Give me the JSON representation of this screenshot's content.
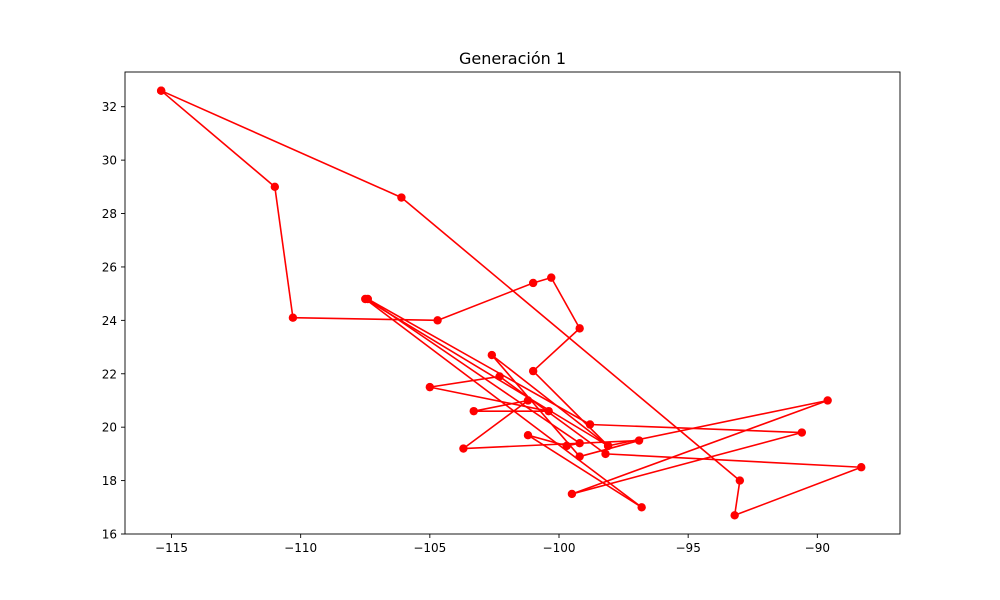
{
  "chart_data": {
    "type": "line",
    "title": "Generación 1",
    "xlabel": "",
    "ylabel": "",
    "xlim": [
      -116.8,
      -86.8
    ],
    "ylim": [
      16.0,
      33.3
    ],
    "x_ticks": [
      -115,
      -110,
      -105,
      -100,
      -95,
      -90
    ],
    "x_tick_labels": [
      "−115",
      "−110",
      "−105",
      "−100",
      "−95",
      "−90"
    ],
    "y_ticks": [
      16,
      18,
      20,
      22,
      24,
      26,
      28,
      30,
      32
    ],
    "y_tick_labels": [
      "16",
      "18",
      "20",
      "22",
      "24",
      "26",
      "28",
      "30",
      "32"
    ],
    "grid": false,
    "series": [
      {
        "color": "#ff0000",
        "marker": "circle",
        "points": [
          {
            "x": -115.4,
            "y": 32.6
          },
          {
            "x": -106.1,
            "y": 28.6
          },
          {
            "x": -93.0,
            "y": 18.0
          },
          {
            "x": -93.2,
            "y": 16.7
          },
          {
            "x": -88.3,
            "y": 18.5
          },
          {
            "x": -98.2,
            "y": 19.0
          },
          {
            "x": -102.3,
            "y": 21.9
          },
          {
            "x": -105.0,
            "y": 21.5
          },
          {
            "x": -100.4,
            "y": 20.6
          },
          {
            "x": -103.3,
            "y": 20.6
          },
          {
            "x": -101.2,
            "y": 21.0
          },
          {
            "x": -103.7,
            "y": 19.2
          },
          {
            "x": -96.9,
            "y": 19.5
          },
          {
            "x": -99.2,
            "y": 18.9
          },
          {
            "x": -102.6,
            "y": 22.7
          },
          {
            "x": -98.1,
            "y": 19.3
          },
          {
            "x": -89.6,
            "y": 21.0
          },
          {
            "x": -99.5,
            "y": 17.5
          },
          {
            "x": -90.6,
            "y": 19.8
          },
          {
            "x": -98.8,
            "y": 20.1
          },
          {
            "x": -107.4,
            "y": 24.8
          },
          {
            "x": -99.2,
            "y": 19.4
          },
          {
            "x": -99.7,
            "y": 19.3
          },
          {
            "x": -101.2,
            "y": 19.7
          },
          {
            "x": -96.8,
            "y": 17.0
          },
          {
            "x": -107.5,
            "y": 24.8
          },
          {
            "x": -98.1,
            "y": 19.3
          },
          {
            "x": -101.0,
            "y": 22.1
          },
          {
            "x": -99.2,
            "y": 23.7
          },
          {
            "x": -100.3,
            "y": 25.6
          },
          {
            "x": -101.0,
            "y": 25.4
          },
          {
            "x": -104.7,
            "y": 24.0
          },
          {
            "x": -110.3,
            "y": 24.1
          },
          {
            "x": -111.0,
            "y": 29.0
          },
          {
            "x": -115.4,
            "y": 32.6
          }
        ]
      }
    ]
  }
}
